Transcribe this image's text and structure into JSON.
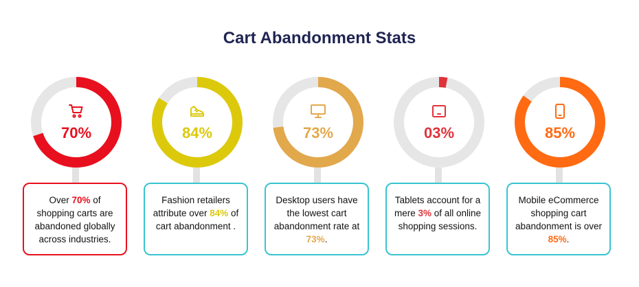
{
  "title": "Cart Abandonment Stats",
  "stats": [
    {
      "percent_label": "70%",
      "value": 70,
      "color": "#e8101e",
      "border": "#e8101e",
      "icon": "cart-icon",
      "text_before": "Over ",
      "highlight": "70%",
      "text_after": " of shopping carts are abandoned globally across industries."
    },
    {
      "percent_label": "84%",
      "value": 84,
      "color": "#dcc90c",
      "border": "#38c4d0",
      "icon": "sneaker-icon",
      "text_before": "Fashion retailers attribute over ",
      "highlight": "84%",
      "text_after": " of cart abandonment ."
    },
    {
      "percent_label": "73%",
      "value": 73,
      "color": "#e2a84c",
      "border": "#38c4d0",
      "icon": "desktop-icon",
      "text_before": "Desktop users have the lowest cart abandonment rate at ",
      "highlight": "73%",
      "text_after": "."
    },
    {
      "percent_label": "03%",
      "value": 3,
      "color": "#e0323a",
      "border": "#38c4d0",
      "icon": "tablet-icon",
      "text_before": "Tablets account for a mere ",
      "highlight": "3%",
      "text_after": " of all online shopping sessions."
    },
    {
      "percent_label": "85%",
      "value": 85,
      "color": "#ff6a12",
      "border": "#38c4d0",
      "icon": "mobile-phone-icon",
      "text_before": "Mobile eCommerce shopping cart abandonment is over ",
      "highlight": "85%",
      "text_after": "."
    }
  ],
  "chart_data": {
    "type": "pie",
    "title": "Cart Abandonment Stats",
    "categories": [
      "Global shopping carts",
      "Fashion retailers",
      "Desktop users",
      "Tablets",
      "Mobile eCommerce"
    ],
    "values": [
      70,
      84,
      73,
      3,
      85
    ],
    "unit": "%",
    "track_color": "#e6e6e6"
  }
}
